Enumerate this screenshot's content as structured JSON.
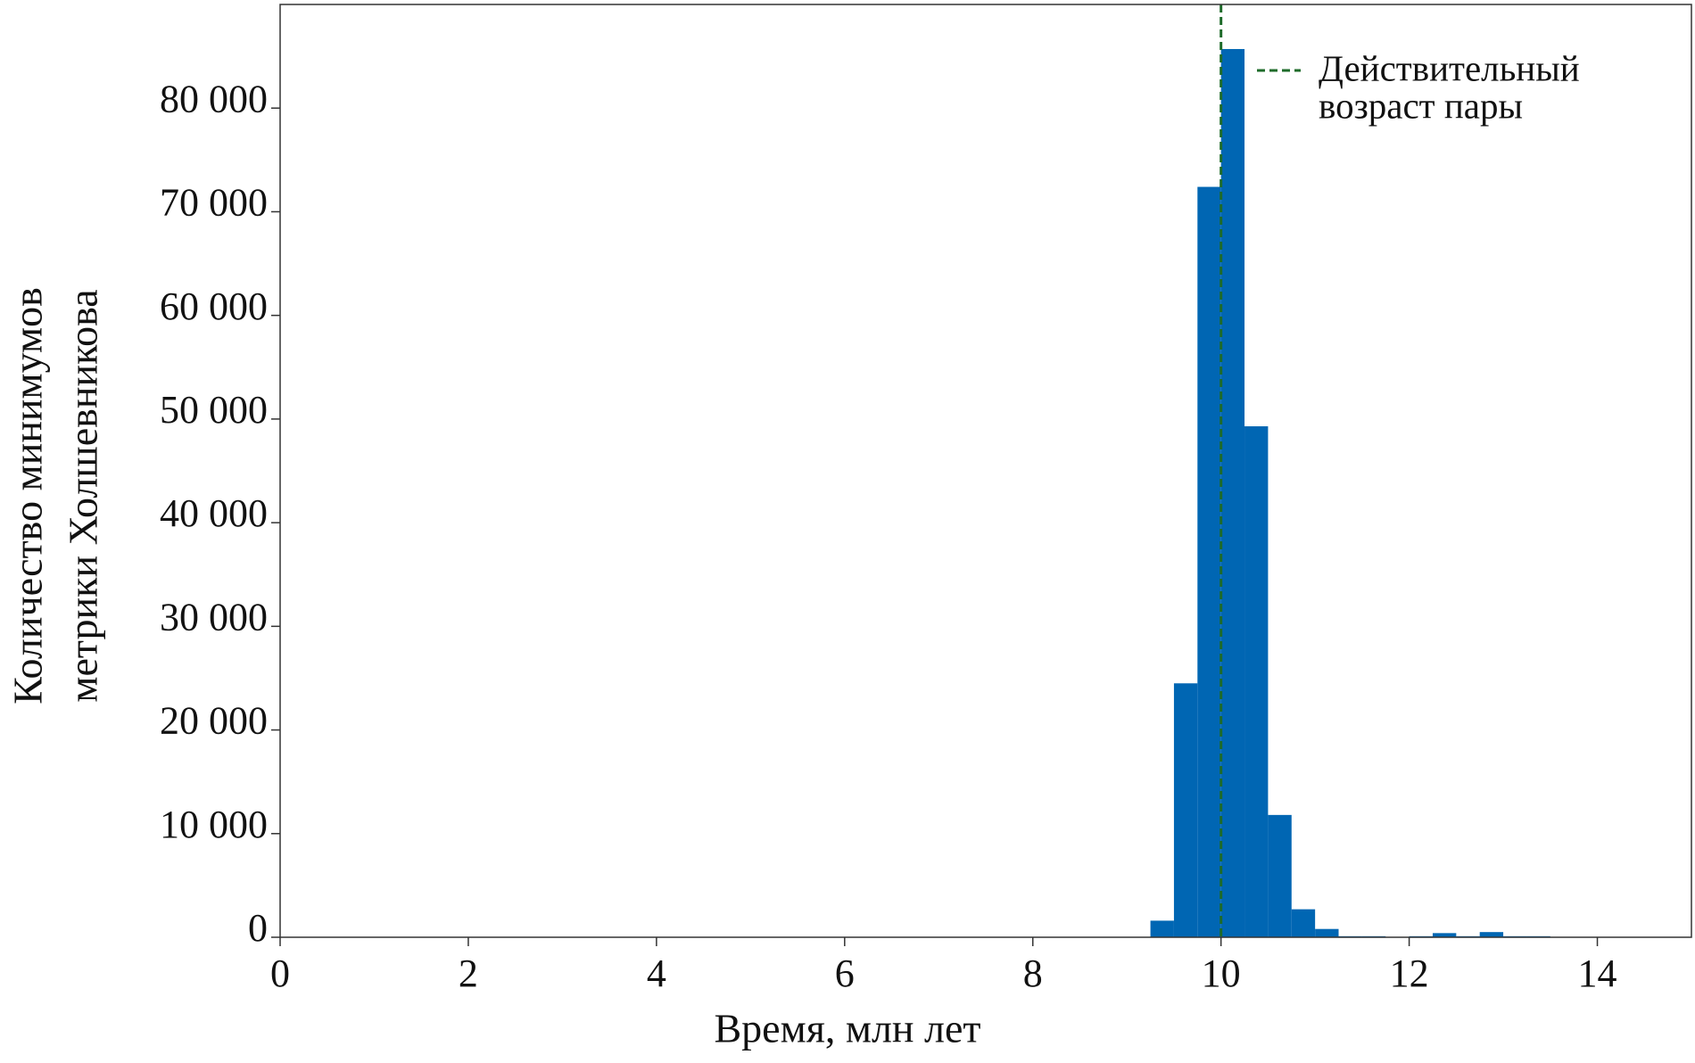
{
  "chart_data": {
    "type": "histogram",
    "xlabel": "Время, млн лет",
    "ylabel": [
      "Количество минимумов",
      "метрики Холшевникова"
    ],
    "bins": [
      9.25,
      9.5,
      9.75,
      10,
      10.25,
      10.5,
      10.75,
      11,
      11.25,
      11.5,
      11.75,
      12,
      12.25,
      12.5,
      12.75,
      13,
      13.25,
      13.5
    ],
    "values": [
      1600,
      24500,
      72400,
      85700,
      49300,
      11800,
      2700,
      800,
      100,
      100,
      0,
      100,
      400,
      100,
      500,
      100,
      100
    ],
    "color": "#0066b3",
    "xlim": [
      0,
      15
    ],
    "xticks": [
      0,
      2,
      4,
      6,
      8,
      10,
      12,
      14
    ],
    "ylim": [
      0,
      90000
    ],
    "yticks": [
      0,
      {
        "value": 10000,
        "label": "10 000"
      },
      {
        "value": 20000,
        "label": "20 000"
      },
      {
        "value": 30000,
        "label": "30 000"
      },
      {
        "value": 40000,
        "label": "40 000"
      },
      {
        "value": 50000,
        "label": "50 000"
      },
      {
        "value": 60000,
        "label": "60 000"
      },
      {
        "value": 70000,
        "label": "70 000"
      },
      {
        "value": 80000,
        "label": "80 000"
      }
    ],
    "reference_line": {
      "x": 10,
      "label": [
        "Действительный",
        "возраст пары"
      ],
      "color": "#1e6b2a"
    },
    "legend": "upper right"
  }
}
